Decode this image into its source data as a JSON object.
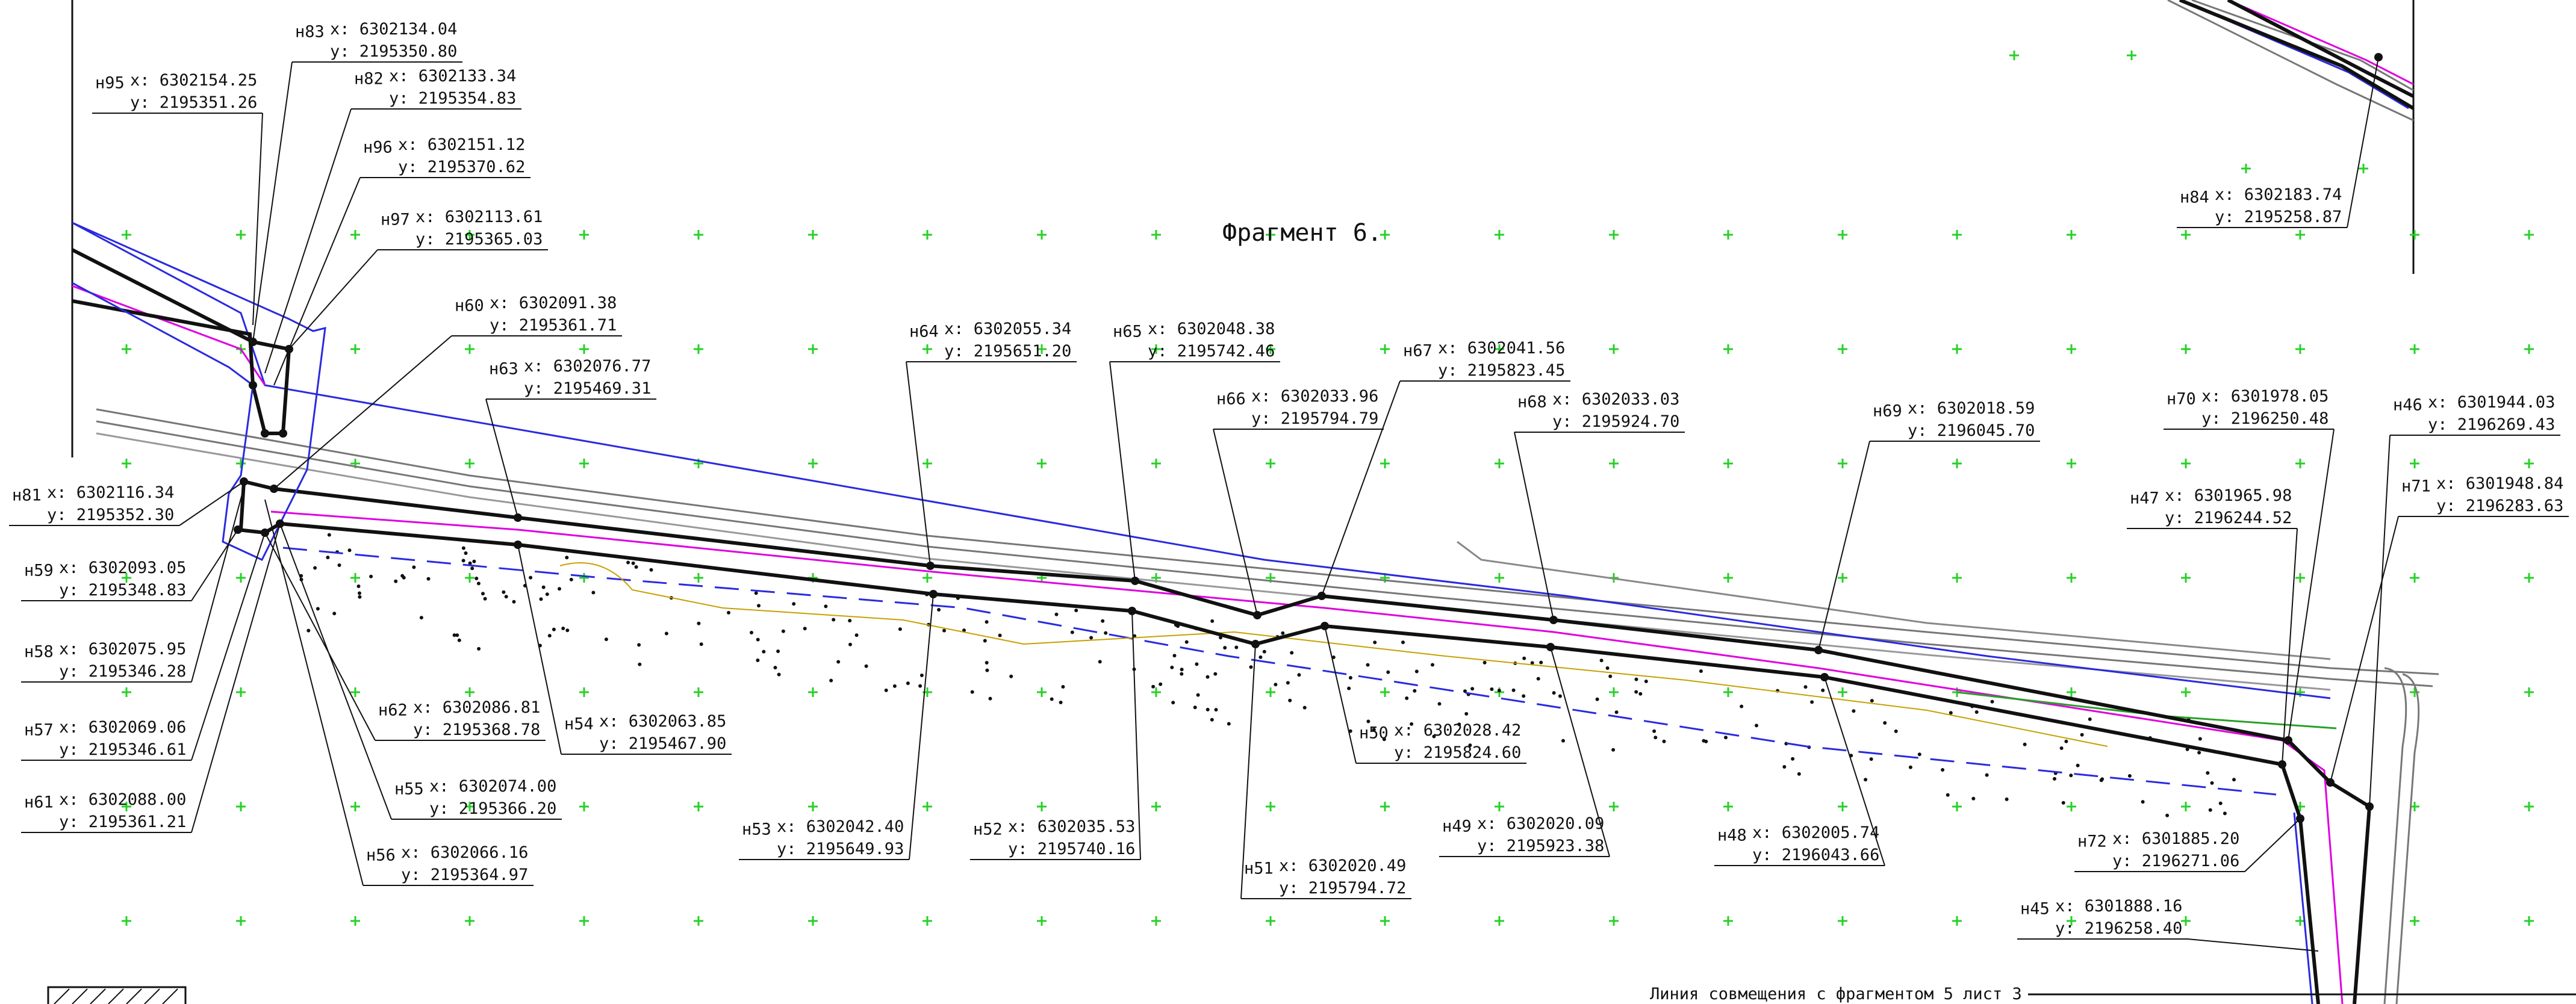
{
  "fragment_title": "Фрагмент 6.",
  "footer_note": "Линия совмещения с фрагментом 5 лист 3",
  "colors": {
    "boundary": "#111111",
    "road_blue": "#2a2ae0",
    "road_magenta": "#e000e0",
    "grid_cross": "#27d027",
    "contour": "#c8a000",
    "background": "#ffffff"
  },
  "points": [
    {
      "id": "н95",
      "x": "x: 6302154.25",
      "y": "y: 2195351.26"
    },
    {
      "id": "н83",
      "x": "x: 6302134.04",
      "y": "y: 2195350.80"
    },
    {
      "id": "н82",
      "x": "x: 6302133.34",
      "y": "y: 2195354.83"
    },
    {
      "id": "н96",
      "x": "x: 6302151.12",
      "y": "y: 2195370.62"
    },
    {
      "id": "н97",
      "x": "x: 6302113.61",
      "y": "y: 2195365.03"
    },
    {
      "id": "н60",
      "x": "x: 6302091.38",
      "y": "y: 2195361.71"
    },
    {
      "id": "н63",
      "x": "x: 6302076.77",
      "y": "y: 2195469.31"
    },
    {
      "id": "н64",
      "x": "x: 6302055.34",
      "y": "y: 2195651.20"
    },
    {
      "id": "н65",
      "x": "x: 6302048.38",
      "y": "y: 2195742.46"
    },
    {
      "id": "н66",
      "x": "x: 6302033.96",
      "y": "y: 2195794.79"
    },
    {
      "id": "н67",
      "x": "x: 6302041.56",
      "y": "y: 2195823.45"
    },
    {
      "id": "н68",
      "x": "x: 6302033.03",
      "y": "y: 2195924.70"
    },
    {
      "id": "н69",
      "x": "x: 6302018.59",
      "y": "y: 2196045.70"
    },
    {
      "id": "н70",
      "x": "x: 6301978.05",
      "y": "y: 2196250.48"
    },
    {
      "id": "н46",
      "x": "x: 6301944.03",
      "y": "y: 2196269.43"
    },
    {
      "id": "н47",
      "x": "x: 6301965.98",
      "y": "y: 2196244.52"
    },
    {
      "id": "н71",
      "x": "x: 6301948.84",
      "y": "y: 2196283.63"
    },
    {
      "id": "н84",
      "x": "x: 6302183.74",
      "y": "y: 2195258.87"
    },
    {
      "id": "н81",
      "x": "x: 6302116.34",
      "y": "y: 2195352.30"
    },
    {
      "id": "н59",
      "x": "x: 6302093.05",
      "y": "y: 2195348.83"
    },
    {
      "id": "н58",
      "x": "x: 6302075.95",
      "y": "y: 2195346.28"
    },
    {
      "id": "н57",
      "x": "x: 6302069.06",
      "y": "y: 2195346.61"
    },
    {
      "id": "н61",
      "x": "x: 6302088.00",
      "y": "y: 2195361.21"
    },
    {
      "id": "н62",
      "x": "x: 6302086.81",
      "y": "y: 2195368.78"
    },
    {
      "id": "н55",
      "x": "x: 6302074.00",
      "y": "y: 2195366.20"
    },
    {
      "id": "н56",
      "x": "x: 6302066.16",
      "y": "y: 2195364.97"
    },
    {
      "id": "н54",
      "x": "x: 6302063.85",
      "y": "y: 2195467.90"
    },
    {
      "id": "н53",
      "x": "x: 6302042.40",
      "y": "y: 2195649.93"
    },
    {
      "id": "н52",
      "x": "x: 6302035.53",
      "y": "y: 2195740.16"
    },
    {
      "id": "н51",
      "x": "x: 6302020.49",
      "y": "y: 2195794.72"
    },
    {
      "id": "н50",
      "x": "x: 6302028.42",
      "y": "y: 2195824.60"
    },
    {
      "id": "н49",
      "x": "x: 6302020.09",
      "y": "y: 2195923.38"
    },
    {
      "id": "н48",
      "x": "x: 6302005.74",
      "y": "y: 2196043.66"
    },
    {
      "id": "н72",
      "x": "x: 6301885.20",
      "y": "y: 2196271.06"
    },
    {
      "id": "н45",
      "x": "x: 6301888.16",
      "y": "y: 2196258.40"
    }
  ]
}
